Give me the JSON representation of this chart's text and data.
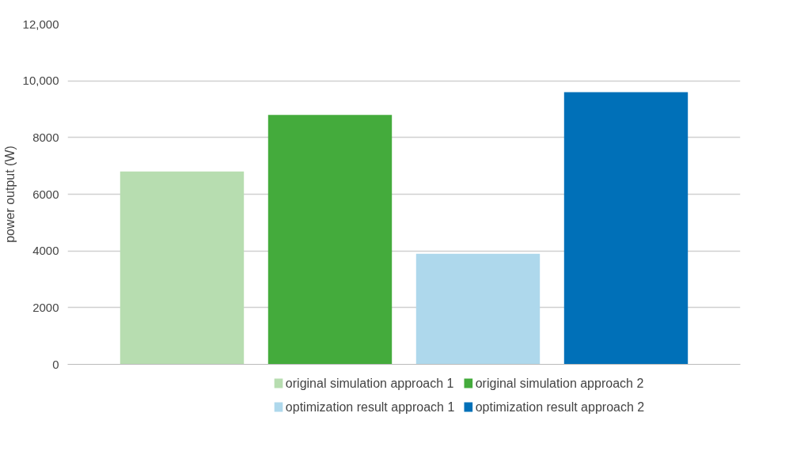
{
  "chart_data": {
    "type": "bar",
    "ylabel": "power output (W)",
    "categories": [
      null
    ],
    "series": [
      {
        "name": "original simulation approach 1",
        "color": "#b7ddb0",
        "values": [
          6800
        ]
      },
      {
        "name": "original simulation approach 2",
        "color": "#44ab3c",
        "values": [
          8800
        ]
      },
      {
        "name": "optimization result approach 1",
        "color": "#aed8ec",
        "values": [
          3900
        ]
      },
      {
        "name": "optimization result approach 2",
        "color": "#0070b8",
        "values": [
          9600
        ]
      }
    ],
    "ylim": [
      0,
      12000
    ],
    "yticks": [
      0,
      2000,
      4000,
      6000,
      8000,
      {
        "value": 10000,
        "label": "10,000"
      },
      {
        "value": 12000,
        "label": "12,000"
      }
    ],
    "grid": "y",
    "legend": "bottom"
  }
}
